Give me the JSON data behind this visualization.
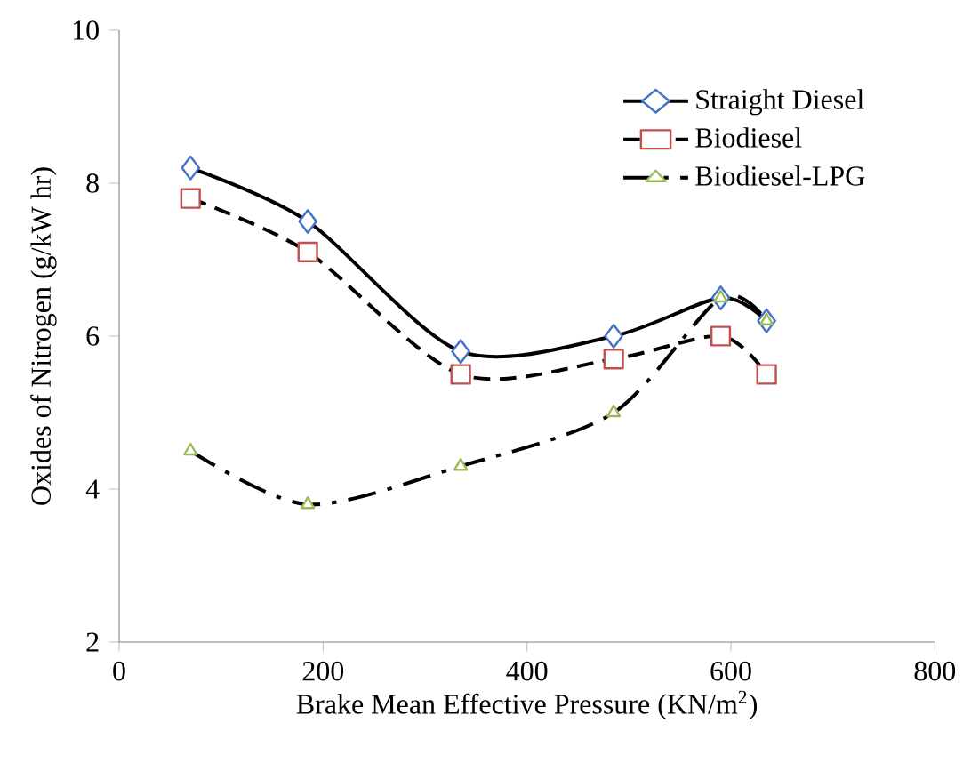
{
  "chart_data": {
    "type": "line",
    "xlabel": "Brake Mean Effective Pressure (KN/m$^{2}$)",
    "ylabel": "Oxides of Nitrogen (g/kW hr)",
    "x": [
      70,
      185,
      335,
      485,
      590,
      635
    ],
    "series": [
      {
        "name": "Straight Diesel",
        "color": "#4472c4",
        "marker": "diamond",
        "line_style": "solid",
        "values": [
          8.2,
          7.5,
          5.8,
          6.0,
          6.5,
          6.2
        ]
      },
      {
        "name": "Biodiesel",
        "color": "#c0504d",
        "marker": "square",
        "line_style": "dashed",
        "values": [
          7.8,
          7.1,
          5.5,
          5.7,
          6.0,
          5.5
        ]
      },
      {
        "name": "Biodiesel-LPG",
        "color": "#9bbb59",
        "marker": "triangle",
        "line_style": "dashdot",
        "values": [
          4.5,
          3.8,
          4.3,
          5.0,
          6.5,
          6.2
        ]
      }
    ],
    "xlim": [
      0,
      800
    ],
    "xticks": [
      0,
      200,
      400,
      600,
      800
    ],
    "ylim": [
      2,
      10
    ],
    "yticks": [
      2,
      4,
      6,
      8,
      10
    ],
    "grid": false,
    "legend": "top right"
  }
}
